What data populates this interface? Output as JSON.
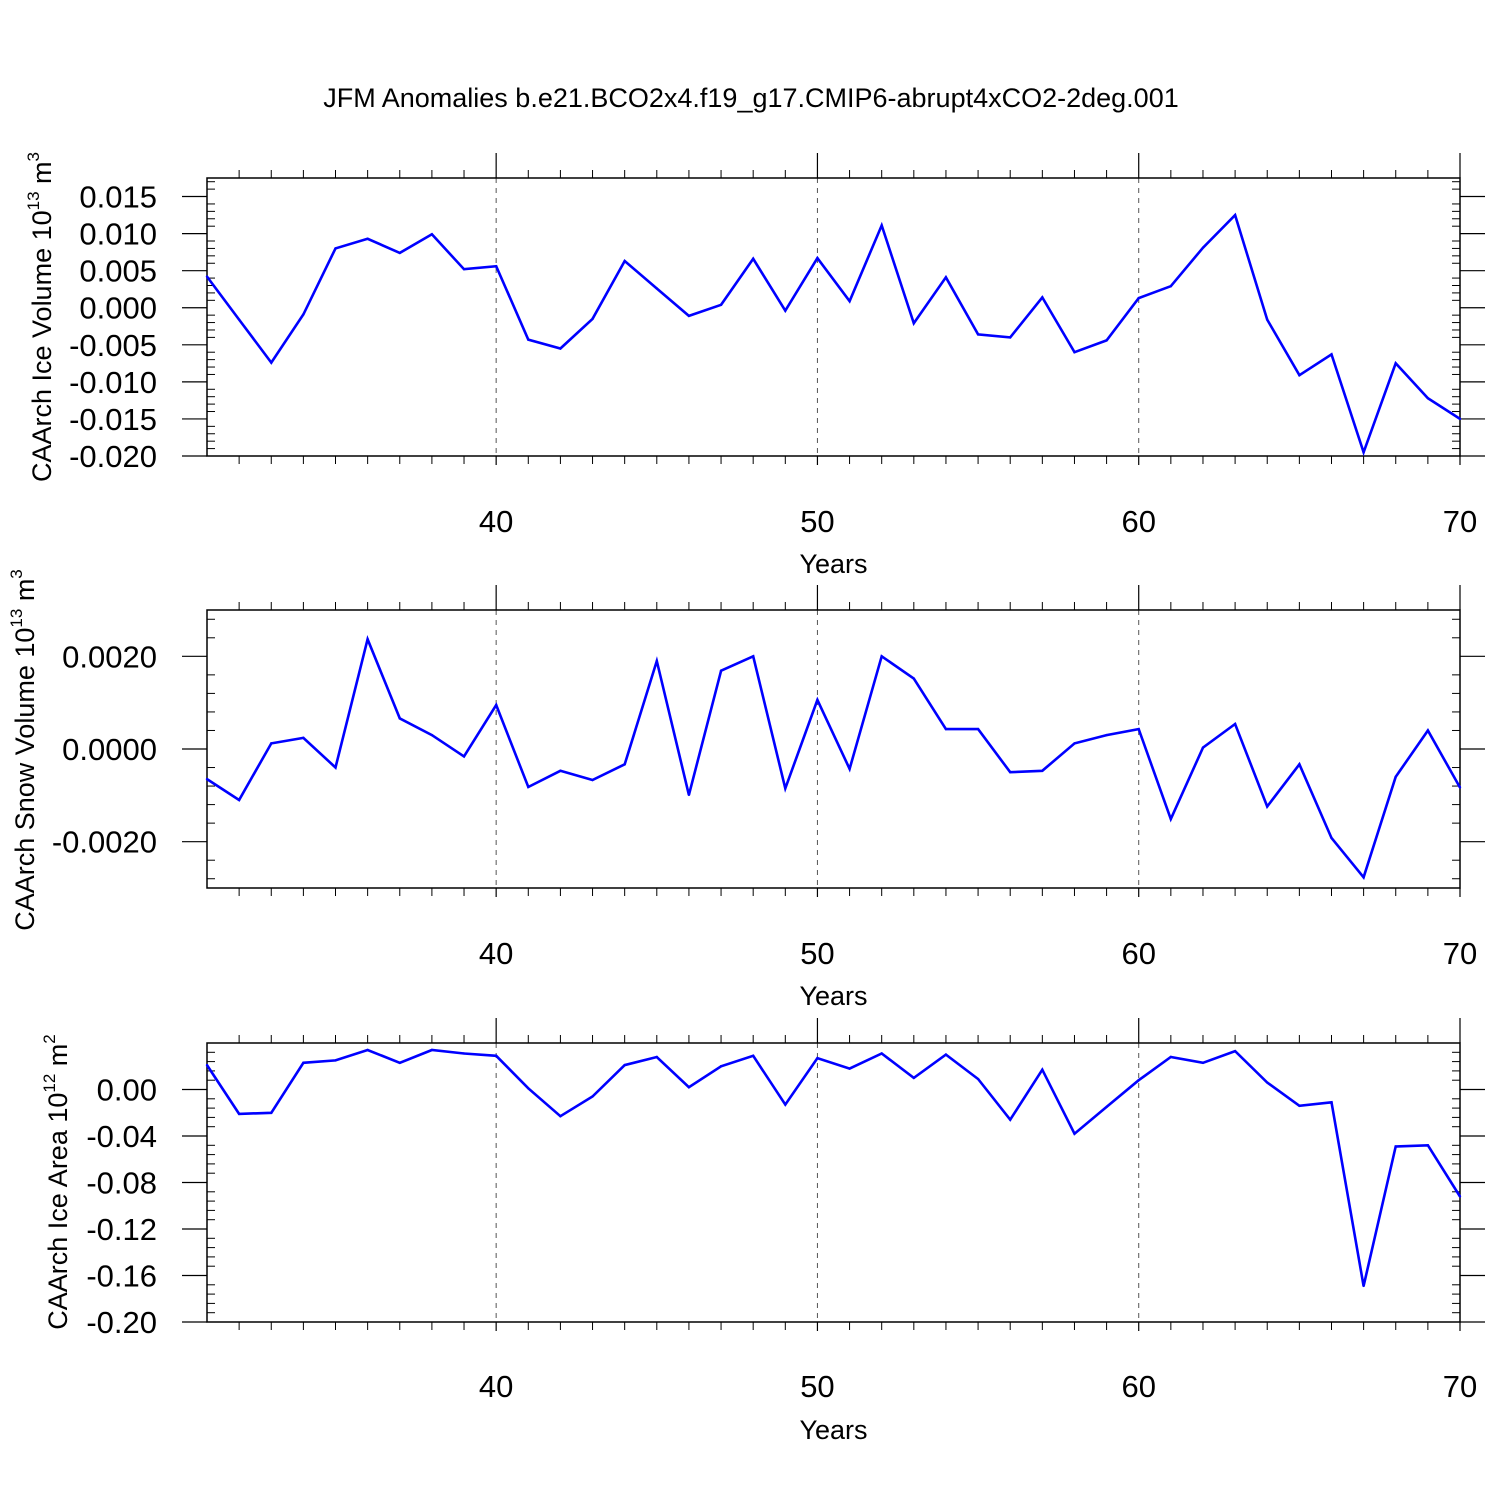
{
  "title": "JFM Anomalies b.e21.BCO2x4.f19_g17.CMIP6-abrupt4xCO2-2deg.001",
  "line_color": "#0000ff",
  "chart_data": [
    {
      "type": "line",
      "ylabel_main": "CAArch Ice Volume 10",
      "ylabel_exp": "13",
      "ylabel_unit": " m",
      "ylabel_unit_exp": "3",
      "xlabel": "Years",
      "xlim": [
        31,
        70
      ],
      "ylim": [
        -0.02,
        0.0175
      ],
      "xticks": [
        40,
        50,
        60,
        70
      ],
      "xtick_labels": [
        "40",
        "50",
        "60",
        "70"
      ],
      "yticks": [
        0.015,
        0.01,
        0.005,
        0.0,
        -0.005,
        -0.01,
        -0.015,
        -0.02
      ],
      "ytick_labels": [
        "0.015",
        "0.010",
        "0.005",
        "0.000",
        "-0.005",
        "-0.010",
        "-0.015",
        "-0.020"
      ],
      "x": [
        31,
        32,
        33,
        34,
        35,
        36,
        37,
        38,
        39,
        40,
        41,
        42,
        43,
        44,
        45,
        46,
        47,
        48,
        49,
        50,
        51,
        52,
        53,
        54,
        55,
        56,
        57,
        58,
        59,
        60,
        61,
        62,
        63,
        64,
        65,
        66,
        67,
        68,
        69,
        70
      ],
      "values": [
        0.0042,
        -0.0016,
        -0.0074,
        -0.0009,
        0.008,
        0.0093,
        0.0074,
        0.0099,
        0.0052,
        0.0056,
        -0.0043,
        -0.0055,
        -0.0015,
        0.0063,
        0.0026,
        -0.0011,
        0.0004,
        0.0066,
        -0.0004,
        0.0067,
        0.0009,
        0.0111,
        -0.0021,
        0.0041,
        -0.0036,
        -0.004,
        0.0014,
        -0.006,
        -0.0044,
        0.0013,
        0.0029,
        0.0081,
        0.0125,
        -0.0016,
        -0.0091,
        -0.0063,
        -0.0195,
        -0.0075,
        -0.0122,
        -0.015
      ]
    },
    {
      "type": "line",
      "ylabel_main": "CAArch Snow Volume 10",
      "ylabel_exp": "13",
      "ylabel_unit": " m",
      "ylabel_unit_exp": "3",
      "xlabel": "Years",
      "xlim": [
        31,
        70
      ],
      "ylim": [
        -0.003,
        0.003
      ],
      "xticks": [
        40,
        50,
        60,
        70
      ],
      "xtick_labels": [
        "40",
        "50",
        "60",
        "70"
      ],
      "yticks": [
        0.002,
        0.0,
        -0.002
      ],
      "ytick_labels": [
        "0.0020",
        "0.0000",
        "-0.0020"
      ],
      "x": [
        31,
        32,
        33,
        34,
        35,
        36,
        37,
        38,
        39,
        40,
        41,
        42,
        43,
        44,
        45,
        46,
        47,
        48,
        49,
        50,
        51,
        52,
        53,
        54,
        55,
        56,
        57,
        58,
        59,
        60,
        61,
        62,
        63,
        64,
        65,
        66,
        67,
        68,
        69,
        70
      ],
      "values": [
        -0.00065,
        -0.0011,
        0.00012,
        0.00024,
        -0.0004,
        0.00237,
        0.00066,
        0.0003,
        -0.00016,
        0.00095,
        -0.00082,
        -0.00047,
        -0.00067,
        -0.00033,
        0.0019,
        -0.00099,
        0.00169,
        0.002,
        -0.00085,
        0.00106,
        -0.00043,
        0.002,
        0.00152,
        0.00043,
        0.00043,
        -0.0005,
        -0.00047,
        0.00012,
        0.0003,
        0.00043,
        -0.00151,
        3e-05,
        0.00054,
        -0.00124,
        -0.00033,
        -0.00192,
        -0.00277,
        -0.0006,
        0.0004,
        -0.00083
      ]
    },
    {
      "type": "line",
      "ylabel_main": "CAArch Ice Area 10",
      "ylabel_exp": "12",
      "ylabel_unit": " m",
      "ylabel_unit_exp": "2",
      "xlabel": "Years",
      "xlim": [
        31,
        70
      ],
      "ylim": [
        -0.2,
        0.04
      ],
      "xticks": [
        40,
        50,
        60,
        70
      ],
      "xtick_labels": [
        "40",
        "50",
        "60",
        "70"
      ],
      "yticks": [
        0.0,
        -0.04,
        -0.08,
        -0.12,
        -0.16,
        -0.2
      ],
      "ytick_labels": [
        "0.00",
        "-0.04",
        "-0.08",
        "-0.12",
        "-0.16",
        "-0.20"
      ],
      "x": [
        31,
        32,
        33,
        34,
        35,
        36,
        37,
        38,
        39,
        40,
        41,
        42,
        43,
        44,
        45,
        46,
        47,
        48,
        49,
        50,
        51,
        52,
        53,
        54,
        55,
        56,
        57,
        58,
        59,
        60,
        61,
        62,
        63,
        64,
        65,
        66,
        67,
        68,
        69,
        70
      ],
      "values": [
        0.021,
        -0.021,
        -0.02,
        0.023,
        0.025,
        0.034,
        0.023,
        0.034,
        0.031,
        0.029,
        0.001,
        -0.023,
        -0.006,
        0.021,
        0.028,
        0.002,
        0.02,
        0.029,
        -0.013,
        0.027,
        0.018,
        0.031,
        0.01,
        0.03,
        0.009,
        -0.026,
        0.017,
        -0.038,
        -0.015,
        0.008,
        0.028,
        0.023,
        0.033,
        0.006,
        -0.014,
        -0.011,
        -0.169,
        -0.049,
        -0.048,
        -0.092
      ]
    }
  ]
}
